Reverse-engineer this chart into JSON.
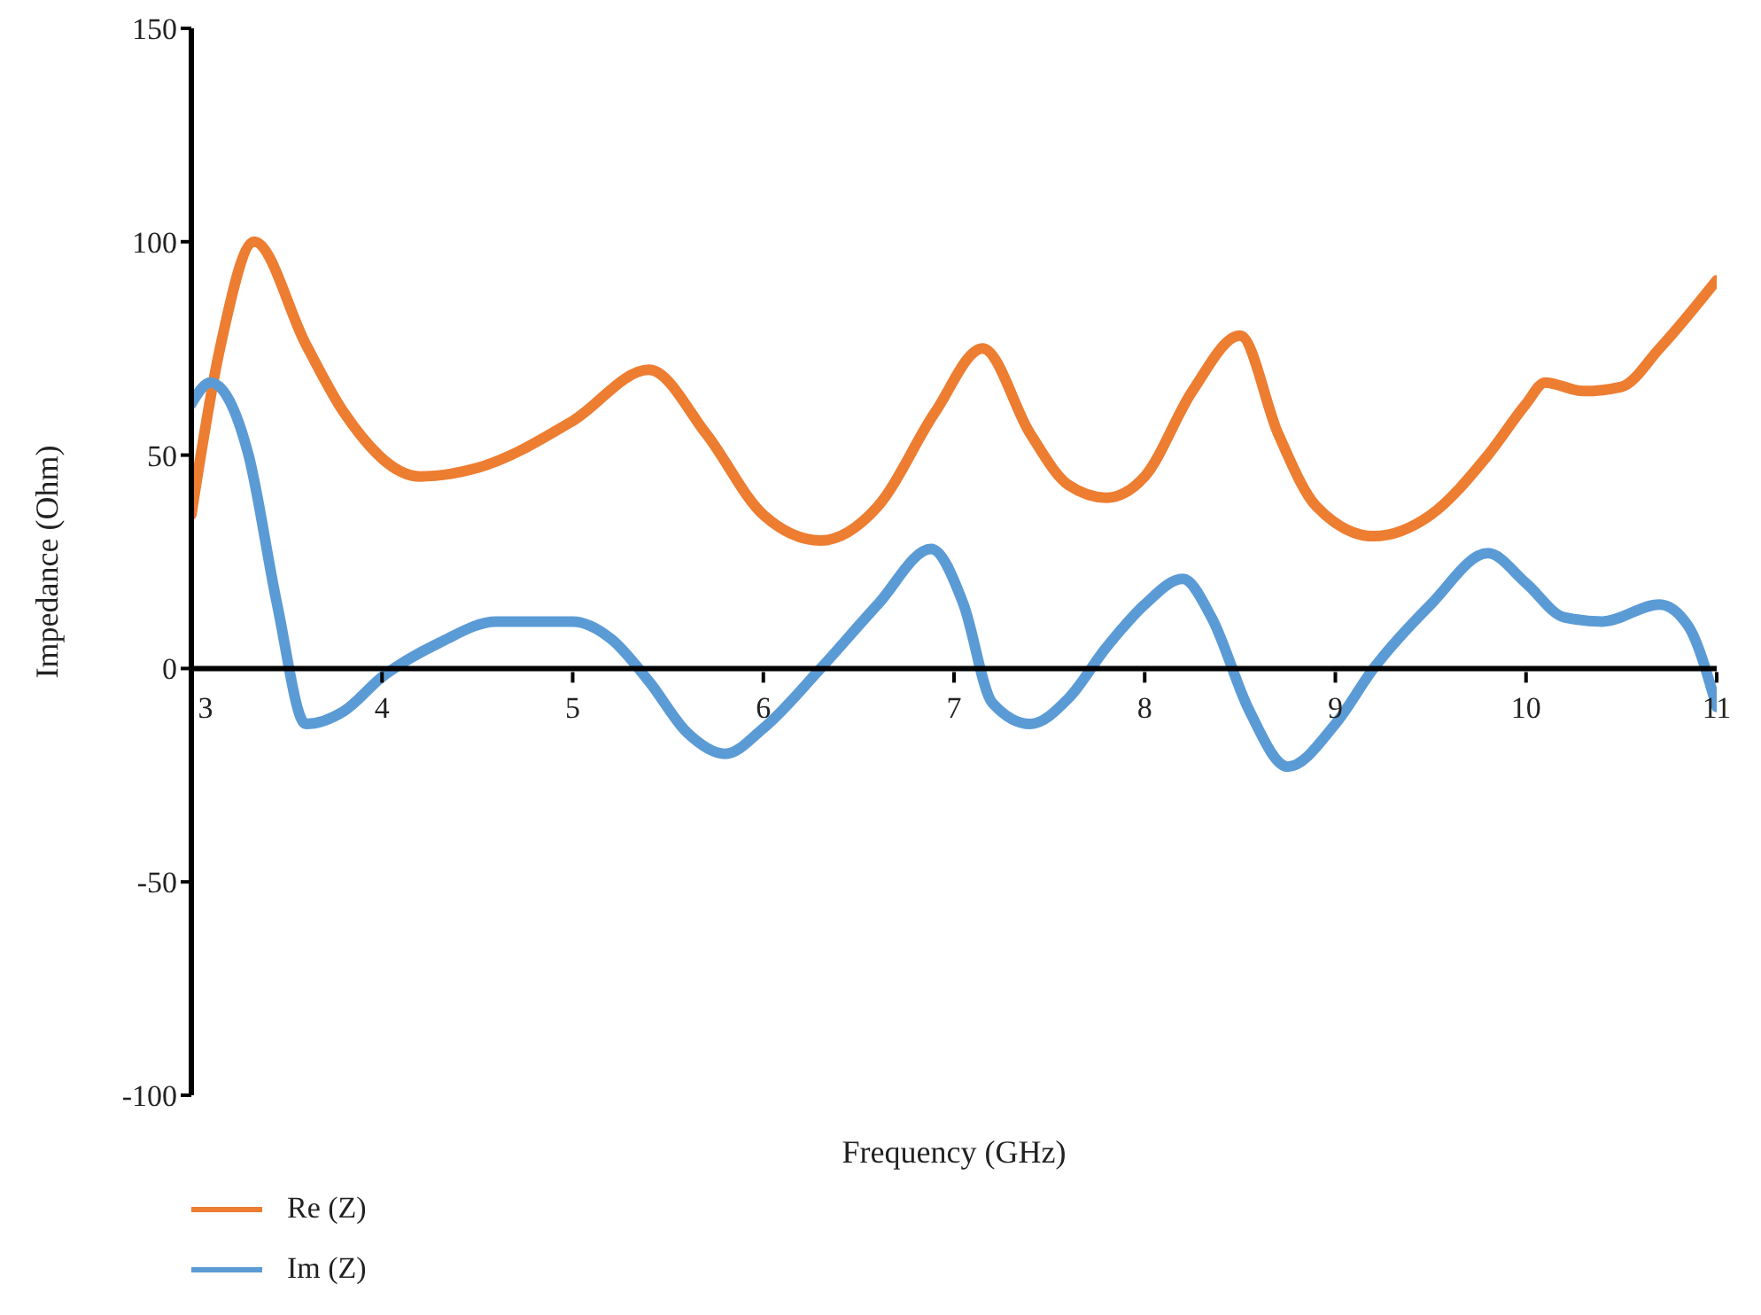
{
  "chart_data": {
    "type": "line",
    "xlabel": "Frequency (GHz)",
    "ylabel": "Impedance (Ohm)",
    "xlim": [
      3,
      11
    ],
    "xticks": [
      3,
      4,
      5,
      6,
      7,
      8,
      9,
      10,
      11
    ],
    "ylim": [
      -100,
      150
    ],
    "yticks": [
      -100,
      -50,
      0,
      50,
      100,
      150
    ],
    "grid": false,
    "legend": "bottom left",
    "marker": "none",
    "line_style": "solid",
    "series": [
      {
        "name": "Re (Z)",
        "color": "#ed7d31",
        "x": [
          3,
          3.15,
          3.33,
          3.6,
          3.8,
          4.2,
          4.5,
          5,
          5.4,
          5.7,
          6,
          6.3,
          6.6,
          6.9,
          7.15,
          7.4,
          7.6,
          7.8,
          8,
          8.25,
          8.5,
          8.7,
          8.9,
          9.2,
          9.5,
          9.8,
          10,
          10.1,
          10.3,
          10.5,
          10.7,
          11
        ],
        "values": [
          36,
          75,
          100,
          76,
          60,
          45,
          47,
          58,
          70,
          55,
          36,
          30,
          38,
          60,
          75,
          55,
          43,
          40,
          45,
          65,
          78,
          55,
          38,
          31,
          36,
          50,
          62,
          67,
          65,
          66,
          75,
          91
        ]
      },
      {
        "name": "Im (Z)",
        "color": "#5b9bd5",
        "x": [
          3,
          3.1,
          3.3,
          3.45,
          3.6,
          3.8,
          4,
          4.3,
          4.6,
          5,
          5.2,
          5.4,
          5.6,
          5.8,
          6,
          6.3,
          6.6,
          6.88,
          7.05,
          7.2,
          7.4,
          7.6,
          7.8,
          8,
          8.2,
          8.35,
          8.55,
          8.75,
          9,
          9.2,
          9.5,
          9.8,
          10,
          10.2,
          10.4,
          10.7,
          10.85,
          11
        ],
        "values": [
          62,
          67,
          50,
          15,
          -13,
          -10,
          -2,
          6,
          11,
          11,
          7,
          -3,
          -15,
          -20,
          -14,
          0,
          15,
          28,
          15,
          -8,
          -13,
          -7,
          5,
          15,
          21,
          12,
          -10,
          -23,
          -13,
          0,
          15,
          27,
          20,
          12,
          11,
          15,
          10,
          -9
        ]
      }
    ]
  }
}
